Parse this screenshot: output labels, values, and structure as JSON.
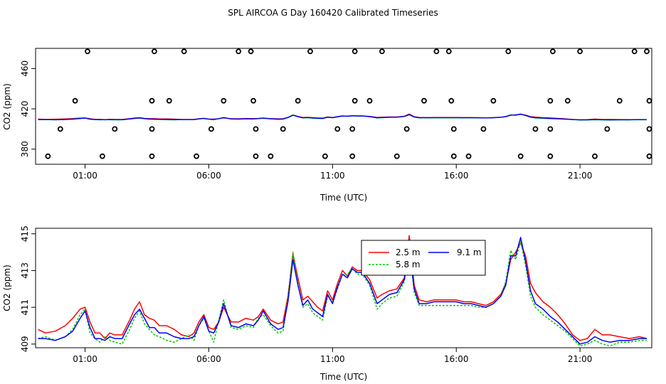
{
  "title": "SPL AIRCOA G  Day 160420  Calibrated Timeseries",
  "chart_data": [
    {
      "type": "scatter",
      "name": "full-range",
      "xlabel": "Time (UTC)",
      "ylabel": "CO2 (ppm)",
      "xlim": [
        -1.0,
        23.9
      ],
      "ylim": [
        365,
        480
      ],
      "xticks": [
        1,
        6,
        11,
        16,
        21
      ],
      "xtick_labels": [
        "01:00",
        "06:00",
        "11:00",
        "16:00",
        "21:00"
      ],
      "yticks": [
        380,
        420,
        460
      ],
      "ytick_labels": [
        "380",
        "420",
        "460"
      ],
      "outliers": [
        {
          "x": 1.1,
          "y": 477
        },
        {
          "x": 3.8,
          "y": 477
        },
        {
          "x": 5.0,
          "y": 477
        },
        {
          "x": 7.2,
          "y": 477
        },
        {
          "x": 7.7,
          "y": 477
        },
        {
          "x": 10.1,
          "y": 477
        },
        {
          "x": 11.9,
          "y": 477
        },
        {
          "x": 13.0,
          "y": 477
        },
        {
          "x": 15.2,
          "y": 477
        },
        {
          "x": 15.7,
          "y": 477
        },
        {
          "x": 18.1,
          "y": 477
        },
        {
          "x": 19.9,
          "y": 477
        },
        {
          "x": 21.0,
          "y": 477
        },
        {
          "x": 23.2,
          "y": 477
        },
        {
          "x": 23.7,
          "y": 477
        },
        {
          "x": 0.6,
          "y": 428
        },
        {
          "x": 3.7,
          "y": 428
        },
        {
          "x": 4.4,
          "y": 428
        },
        {
          "x": 6.6,
          "y": 428
        },
        {
          "x": 7.8,
          "y": 428
        },
        {
          "x": 9.6,
          "y": 428
        },
        {
          "x": 11.9,
          "y": 428
        },
        {
          "x": 12.5,
          "y": 428
        },
        {
          "x": 14.7,
          "y": 428
        },
        {
          "x": 15.8,
          "y": 428
        },
        {
          "x": 17.5,
          "y": 428
        },
        {
          "x": 19.8,
          "y": 428
        },
        {
          "x": 20.5,
          "y": 428
        },
        {
          "x": 22.6,
          "y": 428
        },
        {
          "x": 23.8,
          "y": 428
        },
        {
          "x": 0.0,
          "y": 400
        },
        {
          "x": 2.2,
          "y": 400
        },
        {
          "x": 3.7,
          "y": 400
        },
        {
          "x": 6.1,
          "y": 400
        },
        {
          "x": 7.9,
          "y": 400
        },
        {
          "x": 9.0,
          "y": 400
        },
        {
          "x": 11.2,
          "y": 400
        },
        {
          "x": 11.8,
          "y": 400
        },
        {
          "x": 14.0,
          "y": 400
        },
        {
          "x": 15.9,
          "y": 400
        },
        {
          "x": 17.1,
          "y": 400
        },
        {
          "x": 19.2,
          "y": 400
        },
        {
          "x": 19.8,
          "y": 400
        },
        {
          "x": 22.1,
          "y": 400
        },
        {
          "x": 23.8,
          "y": 400
        },
        {
          "x": -0.5,
          "y": 373
        },
        {
          "x": 1.7,
          "y": 373
        },
        {
          "x": 3.7,
          "y": 373
        },
        {
          "x": 5.5,
          "y": 373
        },
        {
          "x": 7.9,
          "y": 373
        },
        {
          "x": 8.5,
          "y": 373
        },
        {
          "x": 10.7,
          "y": 373
        },
        {
          "x": 11.8,
          "y": 373
        },
        {
          "x": 13.6,
          "y": 373
        },
        {
          "x": 15.9,
          "y": 373
        },
        {
          "x": 16.5,
          "y": 373
        },
        {
          "x": 18.6,
          "y": 373
        },
        {
          "x": 19.8,
          "y": 373
        },
        {
          "x": 21.6,
          "y": 373
        },
        {
          "x": 23.8,
          "y": 373
        }
      ],
      "colors": {
        "series_2_5": "#ff0000",
        "series_5_8": "#00cc00",
        "series_9_1": "#0000ff"
      }
    },
    {
      "type": "line",
      "name": "zoomed",
      "xlabel": "Time (UTC)",
      "ylabel": "CO2 (ppm)",
      "xlim": [
        -1.0,
        23.9
      ],
      "ylim": [
        408.8,
        415.3
      ],
      "xticks": [
        1,
        6,
        11,
        16,
        21
      ],
      "xtick_labels": [
        "01:00",
        "06:00",
        "11:00",
        "16:00",
        "21:00"
      ],
      "yticks": [
        409,
        411,
        413,
        415
      ],
      "ytick_labels": [
        "409",
        "411",
        "413",
        "415"
      ],
      "legend_position": "top-center",
      "series": [
        {
          "name": "2.5 m",
          "color": "#ff0000",
          "dash": "",
          "x": [
            -0.9,
            -0.6,
            -0.2,
            0.2,
            0.5,
            0.8,
            1.0,
            1.2,
            1.4,
            1.6,
            1.8,
            2.0,
            2.2,
            2.5,
            2.8,
            3.0,
            3.2,
            3.4,
            3.6,
            3.8,
            4.0,
            4.3,
            4.6,
            4.9,
            5.2,
            5.4,
            5.6,
            5.8,
            6.0,
            6.2,
            6.4,
            6.6,
            6.9,
            7.2,
            7.5,
            7.8,
            8.0,
            8.2,
            8.5,
            8.8,
            9.0,
            9.2,
            9.4,
            9.6,
            9.8,
            10.0,
            10.2,
            10.4,
            10.6,
            10.8,
            11.0,
            11.2,
            11.4,
            11.6,
            11.8,
            12.0,
            12.2,
            12.5,
            12.8,
            13.0,
            13.3,
            13.6,
            13.9,
            14.1,
            14.3,
            14.5,
            14.8,
            15.1,
            15.4,
            15.7,
            16.0,
            16.3,
            16.6,
            16.9,
            17.2,
            17.5,
            17.8,
            18.0,
            18.2,
            18.4,
            18.6,
            18.8,
            19.0,
            19.2,
            19.5,
            19.8,
            20.1,
            20.4,
            20.7,
            21.0,
            21.3,
            21.6,
            21.9,
            22.2,
            22.6,
            23.0,
            23.4,
            23.7
          ],
          "y": [
            409.8,
            409.6,
            409.7,
            410.0,
            410.4,
            410.9,
            411.0,
            410.2,
            409.6,
            409.6,
            409.3,
            409.6,
            409.5,
            409.5,
            410.3,
            410.9,
            411.3,
            410.6,
            410.4,
            410.3,
            410.0,
            410.0,
            409.8,
            409.5,
            409.4,
            409.6,
            410.2,
            410.6,
            409.9,
            409.8,
            410.2,
            411.0,
            410.2,
            410.2,
            410.4,
            410.3,
            410.5,
            410.9,
            410.3,
            410.1,
            410.2,
            411.6,
            413.9,
            412.6,
            411.4,
            411.6,
            411.3,
            411.0,
            410.8,
            411.9,
            411.4,
            412.3,
            413.0,
            412.7,
            413.2,
            413.0,
            413.0,
            412.5,
            411.5,
            411.7,
            411.9,
            412.0,
            412.6,
            414.9,
            412.2,
            411.4,
            411.3,
            411.4,
            411.4,
            411.4,
            411.4,
            411.3,
            411.3,
            411.2,
            411.1,
            411.3,
            411.7,
            412.3,
            413.6,
            414.0,
            414.5,
            413.8,
            412.3,
            411.8,
            411.3,
            411.0,
            410.6,
            410.1,
            409.5,
            409.2,
            409.3,
            409.8,
            409.5,
            409.5,
            409.4,
            409.3,
            409.4,
            409.3
          ]
        },
        {
          "name": "5.8 m",
          "color": "#00cc00",
          "dash": "3,2",
          "x": [
            -0.9,
            -0.6,
            -0.2,
            0.2,
            0.5,
            0.8,
            1.0,
            1.2,
            1.4,
            1.6,
            1.8,
            2.0,
            2.2,
            2.5,
            2.8,
            3.0,
            3.2,
            3.4,
            3.6,
            3.8,
            4.0,
            4.3,
            4.6,
            4.9,
            5.2,
            5.4,
            5.6,
            5.8,
            6.0,
            6.2,
            6.4,
            6.6,
            6.9,
            7.2,
            7.5,
            7.8,
            8.0,
            8.2,
            8.5,
            8.8,
            9.0,
            9.2,
            9.4,
            9.6,
            9.8,
            10.0,
            10.2,
            10.4,
            10.6,
            10.8,
            11.0,
            11.2,
            11.4,
            11.6,
            11.8,
            12.0,
            12.2,
            12.5,
            12.8,
            13.0,
            13.3,
            13.6,
            13.9,
            14.1,
            14.3,
            14.5,
            14.8,
            15.1,
            15.4,
            15.7,
            16.0,
            16.3,
            16.6,
            16.9,
            17.2,
            17.5,
            17.8,
            18.0,
            18.2,
            18.4,
            18.6,
            18.8,
            19.0,
            19.2,
            19.5,
            19.8,
            20.1,
            20.4,
            20.7,
            21.0,
            21.3,
            21.6,
            21.9,
            22.2,
            22.6,
            23.0,
            23.4,
            23.7
          ],
          "y": [
            409.3,
            409.4,
            409.2,
            409.4,
            409.8,
            410.6,
            410.9,
            409.6,
            409.3,
            409.1,
            409.4,
            409.2,
            409.1,
            409.0,
            409.8,
            410.4,
            410.8,
            410.1,
            409.8,
            409.5,
            409.4,
            409.2,
            409.1,
            409.3,
            409.5,
            409.2,
            410.0,
            410.4,
            409.7,
            409.1,
            410.3,
            411.4,
            409.9,
            409.8,
            410.0,
            409.9,
            410.4,
            410.6,
            410.0,
            409.6,
            409.7,
            411.5,
            414.0,
            412.3,
            411.0,
            411.2,
            410.7,
            410.5,
            410.3,
            411.6,
            411.3,
            412.0,
            412.8,
            412.8,
            413.1,
            412.8,
            412.8,
            412.2,
            410.9,
            411.2,
            411.5,
            411.6,
            412.4,
            414.3,
            411.8,
            411.1,
            411.1,
            411.1,
            411.1,
            411.1,
            411.1,
            411.1,
            411.1,
            411.0,
            411.0,
            411.2,
            411.6,
            412.4,
            414.1,
            413.6,
            414.6,
            413.3,
            411.6,
            411.0,
            410.6,
            410.3,
            410.0,
            409.7,
            409.3,
            408.9,
            409.0,
            409.2,
            409.0,
            408.9,
            409.1,
            409.1,
            409.2,
            409.2
          ]
        },
        {
          "name": "9.1 m",
          "color": "#0000ff",
          "dash": "",
          "x": [
            -0.9,
            -0.6,
            -0.2,
            0.2,
            0.5,
            0.8,
            1.0,
            1.2,
            1.4,
            1.6,
            1.8,
            2.0,
            2.2,
            2.5,
            2.8,
            3.0,
            3.2,
            3.4,
            3.6,
            3.8,
            4.0,
            4.3,
            4.6,
            4.9,
            5.2,
            5.4,
            5.6,
            5.8,
            6.0,
            6.2,
            6.4,
            6.6,
            6.9,
            7.2,
            7.5,
            7.8,
            8.0,
            8.2,
            8.5,
            8.8,
            9.0,
            9.2,
            9.4,
            9.6,
            9.8,
            10.0,
            10.2,
            10.4,
            10.6,
            10.8,
            11.0,
            11.2,
            11.4,
            11.6,
            11.8,
            12.0,
            12.2,
            12.5,
            12.8,
            13.0,
            13.3,
            13.6,
            13.9,
            14.1,
            14.3,
            14.5,
            14.8,
            15.1,
            15.4,
            15.7,
            16.0,
            16.3,
            16.6,
            16.9,
            17.2,
            17.5,
            17.8,
            18.0,
            18.2,
            18.4,
            18.6,
            18.8,
            19.0,
            19.2,
            19.5,
            19.8,
            20.1,
            20.4,
            20.7,
            21.0,
            21.3,
            21.6,
            21.9,
            22.2,
            22.6,
            23.0,
            23.4,
            23.7
          ],
          "y": [
            409.3,
            409.3,
            409.2,
            409.4,
            409.7,
            410.4,
            410.8,
            409.9,
            409.3,
            409.3,
            409.2,
            409.4,
            409.3,
            409.3,
            410.1,
            410.6,
            410.9,
            410.4,
            409.9,
            409.9,
            409.6,
            409.6,
            409.4,
            409.3,
            409.3,
            409.4,
            410.0,
            410.5,
            409.7,
            409.6,
            410.2,
            411.2,
            410.0,
            409.9,
            410.1,
            410.0,
            410.3,
            410.8,
            410.1,
            409.8,
            409.9,
            411.3,
            413.6,
            412.2,
            411.1,
            411.4,
            410.9,
            410.7,
            410.5,
            411.7,
            411.2,
            412.1,
            412.8,
            412.6,
            413.1,
            412.9,
            412.9,
            412.3,
            411.2,
            411.4,
            411.7,
            411.8,
            412.5,
            414.2,
            412.0,
            411.2,
            411.2,
            411.3,
            411.3,
            411.3,
            411.3,
            411.2,
            411.2,
            411.1,
            411.0,
            411.2,
            411.6,
            412.2,
            413.8,
            413.8,
            414.8,
            413.5,
            411.9,
            411.2,
            410.9,
            410.5,
            410.2,
            409.8,
            409.4,
            409.0,
            409.1,
            409.4,
            409.2,
            409.1,
            409.2,
            409.2,
            409.3,
            409.3
          ]
        }
      ]
    }
  ]
}
